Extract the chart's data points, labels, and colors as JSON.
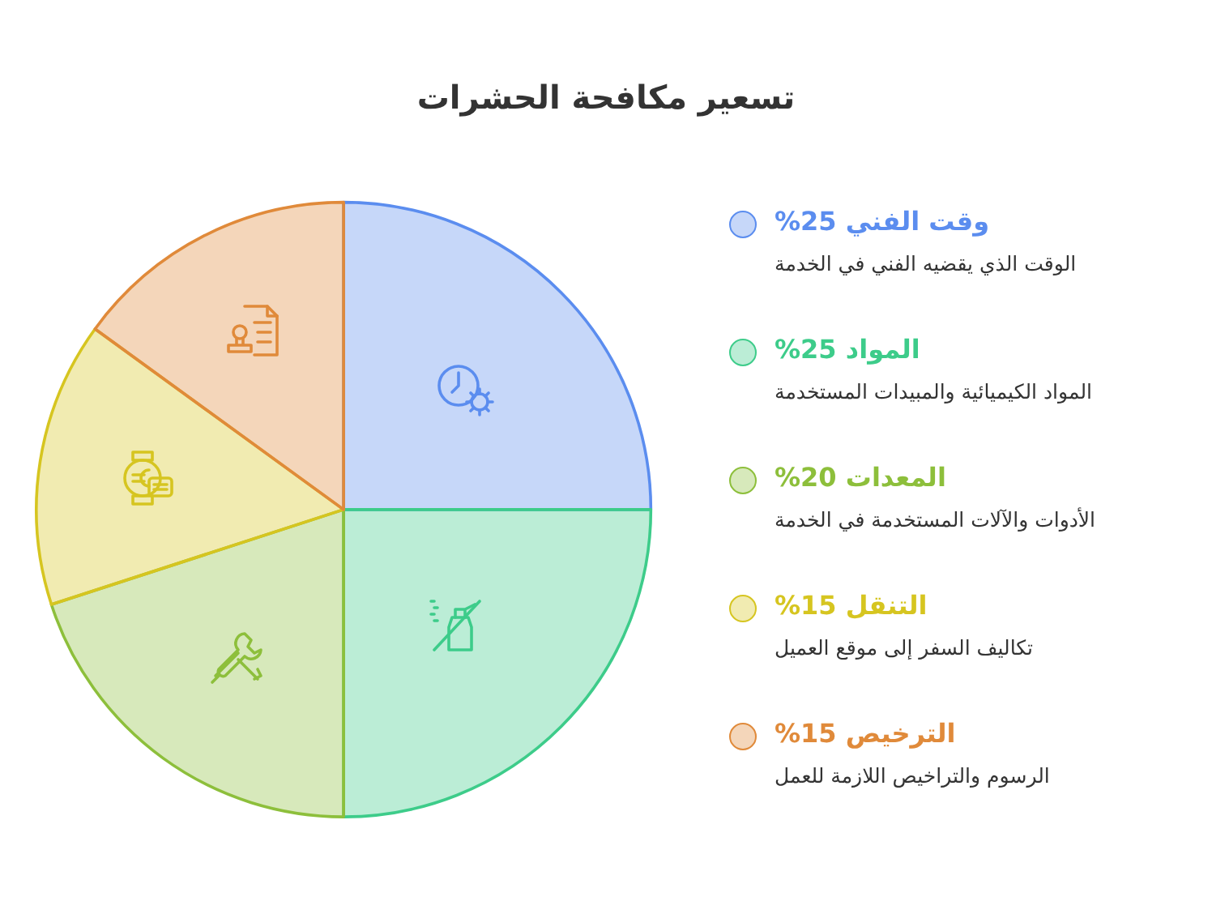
{
  "chart_data": {
    "type": "pie",
    "title": "تسعير مكافحة الحشرات",
    "categories": [
      "وقت الفني",
      "المواد",
      "المعدات",
      "التنقل",
      "الترخيص"
    ],
    "values": [
      25,
      25,
      20,
      15,
      15
    ],
    "value_labels": [
      "25%",
      "25%",
      "20%",
      "15%",
      "15%"
    ],
    "colors": [
      "#5b8def",
      "#3dcc8a",
      "#8dbf3b",
      "#d6c520",
      "#e08a3a"
    ],
    "annotations": [
      "الوقت الذي يقضيه الفني في الخدمة",
      "المواد الكيميائية والمبيدات المستخدمة",
      "الأدوات والآلات المستخدمة في الخدمة",
      "تكاليف السفر إلى موقع العميل",
      "الرسوم والتراخيص اللازمة للعمل"
    ],
    "legend": "right"
  }
}
